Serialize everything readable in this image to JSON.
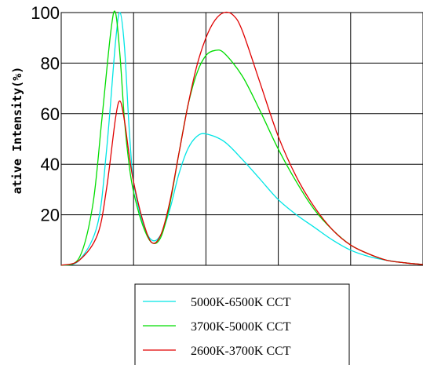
{
  "chart_data": {
    "type": "line",
    "title": "",
    "xlabel": "",
    "ylabel": "ative Intensity(%)",
    "ylim": [
      0,
      100
    ],
    "xlim": [
      380,
      780
    ],
    "yticks": [
      "20",
      "40",
      "60",
      "80",
      "100"
    ],
    "grid": true,
    "legend_position": "bottom",
    "series": [
      {
        "name": "5000K-6500K CCT",
        "color": "#00e5e5",
        "x": [
          380,
          400,
          420,
          430,
          440,
          445,
          450,
          455,
          460,
          470,
          480,
          490,
          500,
          510,
          520,
          530,
          540,
          560,
          580,
          600,
          620,
          640,
          660,
          680,
          700,
          720,
          740,
          760,
          780
        ],
        "y": [
          0,
          2,
          16,
          45,
          88,
          100,
          86,
          55,
          33,
          17,
          10,
          12,
          22,
          36,
          46,
          51,
          52,
          49,
          42,
          34,
          26,
          20,
          15,
          10,
          6,
          3.5,
          2,
          1,
          0.3
        ]
      },
      {
        "name": "3700K-5000K CCT",
        "color": "#00dd00",
        "x": [
          380,
          400,
          415,
          425,
          435,
          440,
          445,
          450,
          455,
          460,
          470,
          480,
          490,
          500,
          510,
          520,
          530,
          540,
          550,
          560,
          580,
          600,
          620,
          640,
          660,
          680,
          700,
          720,
          740,
          760,
          780
        ],
        "y": [
          0,
          3,
          24,
          58,
          93,
          100,
          83,
          57,
          40,
          29,
          16,
          9,
          11,
          24,
          44,
          63,
          76,
          83,
          85,
          84,
          75,
          61,
          46,
          33,
          22,
          14,
          8,
          4.5,
          2,
          1,
          0.3
        ]
      },
      {
        "name": "2600K-3700K CCT",
        "color": "#e00000",
        "x": [
          380,
          400,
          420,
          430,
          440,
          445,
          450,
          455,
          460,
          470,
          480,
          490,
          500,
          510,
          520,
          530,
          540,
          550,
          560,
          570,
          580,
          600,
          620,
          640,
          660,
          680,
          700,
          720,
          740,
          760,
          780
        ],
        "y": [
          0,
          2,
          12,
          30,
          58,
          65,
          57,
          44,
          33,
          18,
          9,
          12,
          25,
          44,
          63,
          79,
          90,
          97,
          100,
          99,
          93,
          72,
          51,
          35,
          23,
          14,
          8,
          4.5,
          2,
          1,
          0.3
        ]
      }
    ]
  }
}
